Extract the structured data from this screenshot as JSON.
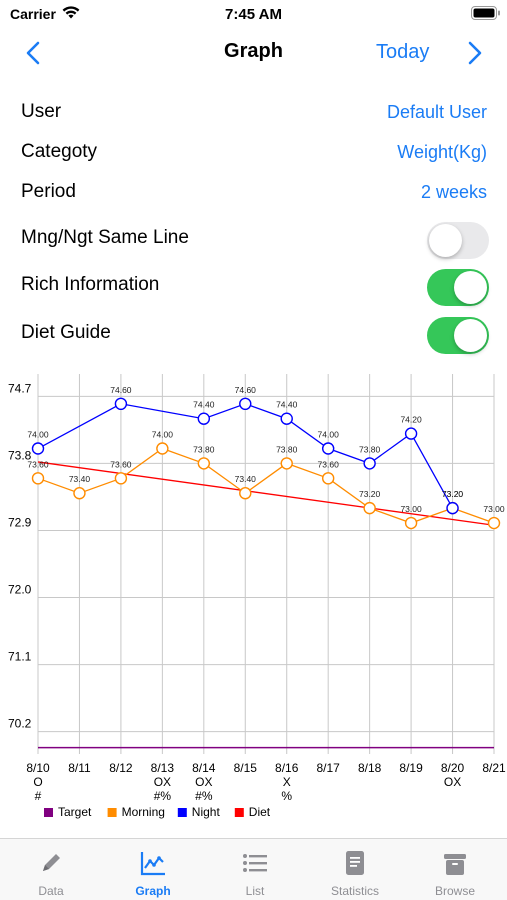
{
  "status": {
    "carrier": "Carrier",
    "time": "7:45 AM"
  },
  "nav": {
    "title": "Graph",
    "today_label": "Today"
  },
  "settings": [
    {
      "label": "User",
      "value": "Default User"
    },
    {
      "label": "Categoty",
      "value": "Weight(Kg)"
    },
    {
      "label": "Period",
      "value": "2 weeks"
    },
    {
      "label": "Mng/Ngt Same Line",
      "toggle": false
    },
    {
      "label": "Rich Information",
      "toggle": true
    },
    {
      "label": "Diet Guide",
      "toggle": true
    }
  ],
  "chart_data": {
    "type": "line",
    "x": [
      "8/10",
      "8/11",
      "8/12",
      "8/13",
      "8/14",
      "8/15",
      "8/16",
      "8/17",
      "8/18",
      "8/19",
      "8/20",
      "8/21"
    ],
    "x_marks": [
      [
        "O",
        "#"
      ],
      [],
      [],
      [
        "OX",
        "#%"
      ],
      [
        "OX",
        "#%"
      ],
      [],
      [
        "X",
        "%"
      ],
      [],
      [],
      [],
      [
        "OX"
      ],
      []
    ],
    "y_ticks": [
      70.2,
      71.1,
      72.0,
      72.9,
      73.8,
      74.7
    ],
    "y_tick_labels": [
      "70.2",
      "71.1",
      "72.0",
      "72.9",
      "73.8",
      "74.7"
    ],
    "ylim": [
      69.9,
      75.0
    ],
    "grid": true,
    "legend_position": "bottom",
    "series": [
      {
        "name": "Target",
        "color": "#800080",
        "values": [
          69.985,
          69.985,
          69.985,
          69.985,
          69.985,
          69.985,
          69.985,
          69.985,
          69.985,
          69.985,
          69.985,
          69.985
        ],
        "markers": false,
        "value_labels": false
      },
      {
        "name": "Morning",
        "color": "#ff8c00",
        "values": [
          73.6,
          73.4,
          73.6,
          74.0,
          73.8,
          73.4,
          73.8,
          73.6,
          73.2,
          73.0,
          73.2,
          73.0
        ],
        "labels": [
          "73.60",
          "73.40",
          "73.60",
          "74.00",
          "73.80",
          "73.40",
          "73.80",
          "73.60",
          "73.20",
          "73.00",
          "73.20",
          "73.00"
        ],
        "markers": true,
        "value_labels": true,
        "label_skip_last_but_one": true
      },
      {
        "name": "Night",
        "color": "#0000ff",
        "values": [
          74.0,
          null,
          74.6,
          null,
          74.4,
          74.6,
          74.4,
          74.0,
          73.8,
          74.2,
          73.2,
          null
        ],
        "labels": [
          "74.00",
          "",
          "74.60",
          "",
          "74.40",
          "74.60",
          "74.40",
          "74.00",
          "73.80",
          "74.20",
          "73.20",
          ""
        ],
        "markers": true,
        "value_labels": true
      },
      {
        "name": "Diet",
        "color": "#ff0000",
        "start": 73.82,
        "end": 72.97,
        "markers": false,
        "value_labels": false
      }
    ]
  },
  "tabs": [
    {
      "label": "Data",
      "icon": "pencil-icon",
      "active": false
    },
    {
      "label": "Graph",
      "icon": "chart-icon",
      "active": true
    },
    {
      "label": "List",
      "icon": "list-icon",
      "active": false
    },
    {
      "label": "Statistics",
      "icon": "document-icon",
      "active": false
    },
    {
      "label": "Browse",
      "icon": "archive-box-icon",
      "active": false
    }
  ],
  "colors": {
    "accent": "#1a7cf5",
    "toggle_on": "#35c759",
    "toggle_off": "#e9e9eb",
    "grid": "#c8c8c8"
  }
}
